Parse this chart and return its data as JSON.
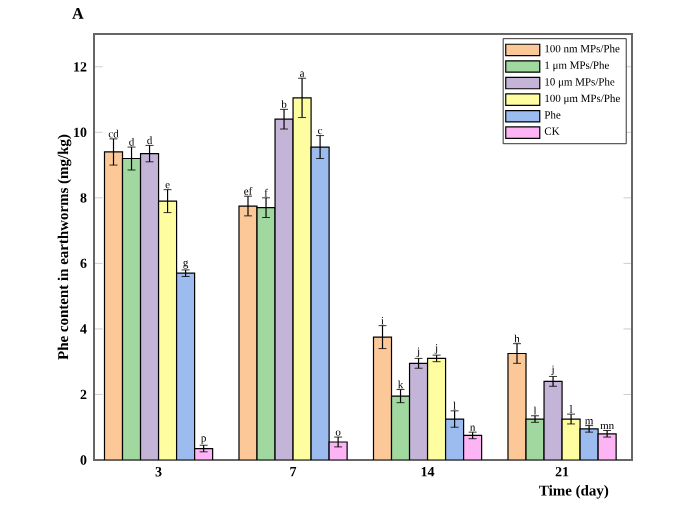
{
  "chart_data": {
    "type": "bar",
    "title": "A",
    "xlabel": "Time (day)",
    "ylabel": "Phe content in earthworms (mg/kg)",
    "categories": [
      "3",
      "7",
      "14",
      "21"
    ],
    "series": [
      {
        "name": "100 nm MPs/Phe",
        "color": "#fdc898",
        "values": [
          9.4,
          7.75,
          3.75,
          3.25
        ],
        "errors": [
          0.4,
          0.3,
          0.35,
          0.3
        ],
        "value_labels": [
          "cd",
          "ef",
          "i",
          "h"
        ]
      },
      {
        "name": "1 μm MPs/Phe",
        "color": "#a0d8a0",
        "values": [
          9.2,
          7.7,
          1.95,
          1.25
        ],
        "errors": [
          0.35,
          0.3,
          0.2,
          0.1
        ],
        "value_labels": [
          "d",
          "f",
          "k",
          "l"
        ]
      },
      {
        "name": "10 μm MPs/Phe",
        "color": "#c4b4d8",
        "values": [
          9.35,
          10.4,
          2.95,
          2.4
        ],
        "errors": [
          0.25,
          0.3,
          0.15,
          0.15
        ],
        "value_labels": [
          "d",
          "b",
          "j",
          "j"
        ]
      },
      {
        "name": "100 μm MPs/Phe",
        "color": "#fefea0",
        "values": [
          7.9,
          11.05,
          3.1,
          1.25
        ],
        "errors": [
          0.35,
          0.6,
          0.1,
          0.15
        ],
        "value_labels": [
          "e",
          "a",
          "j",
          "l"
        ]
      },
      {
        "name": "Phe",
        "color": "#9cbcf0",
        "values": [
          5.7,
          9.55,
          1.25,
          0.95
        ],
        "errors": [
          0.1,
          0.35,
          0.25,
          0.1
        ],
        "value_labels": [
          "g",
          "c",
          "l",
          "m"
        ]
      },
      {
        "name": "CK",
        "color": "#fcb4f4",
        "values": [
          0.35,
          0.55,
          0.75,
          0.8
        ],
        "errors": [
          0.1,
          0.15,
          0.1,
          0.1
        ],
        "value_labels": [
          "p",
          "o",
          "n",
          "mn"
        ]
      }
    ],
    "ylim": [
      0,
      13
    ],
    "yticks": [
      0,
      2,
      4,
      6,
      8,
      10,
      12
    ],
    "legend": "top right"
  }
}
